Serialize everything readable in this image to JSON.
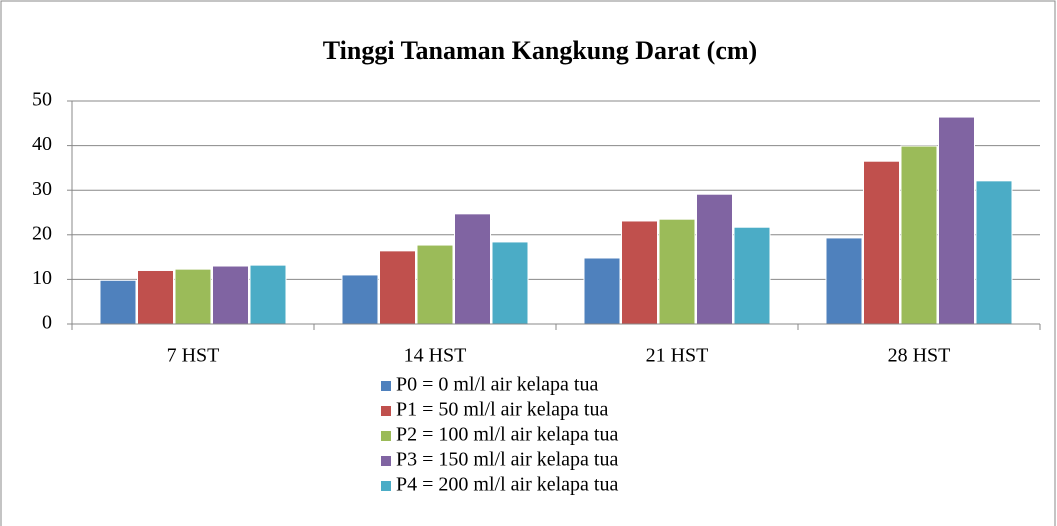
{
  "chart_data": {
    "type": "bar",
    "title": "Tinggi Tanaman Kangkung Darat (cm)",
    "categories": [
      "7 HST",
      "14 HST",
      "21 HST",
      "28 HST"
    ],
    "series": [
      {
        "name": "P0 = 0 ml/l air kelapa tua",
        "color": "#4f81bd",
        "values": [
          9.8,
          11,
          14.8,
          19.3
        ]
      },
      {
        "name": "P1 = 50 ml/l air kelapa tua",
        "color": "#c0504d",
        "values": [
          12,
          16.4,
          23.1,
          36.5
        ]
      },
      {
        "name": "P2 = 100 ml/l air kelapa tua",
        "color": "#9bbb59",
        "values": [
          12.3,
          17.7,
          23.5,
          39.9
        ]
      },
      {
        "name": "P3 = 150 ml/l air kelapa tua",
        "color": "#8064a2",
        "values": [
          13,
          24.7,
          29.1,
          46.4
        ]
      },
      {
        "name": "P4 = 200 ml/l air kelapa tua",
        "color": "#4bacc6",
        "values": [
          13.2,
          18.4,
          21.7,
          32.1
        ]
      }
    ],
    "ylim": [
      0,
      50
    ],
    "yticks": [
      0,
      10,
      20,
      30,
      40,
      50
    ],
    "grid": true,
    "legend": "bottom"
  }
}
